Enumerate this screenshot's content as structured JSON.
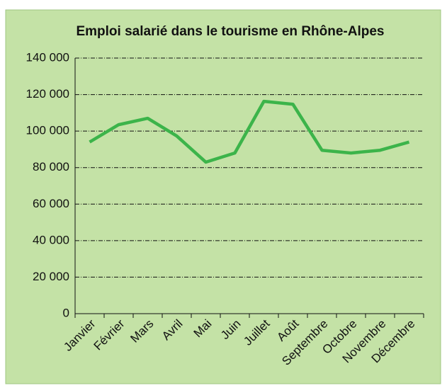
{
  "chart_data": {
    "type": "line",
    "title": "Emploi salarié dans le tourisme en Rhône-Alpes",
    "categories": [
      "Janvier",
      "Février",
      "Mars",
      "Avril",
      "Mai",
      "Juin",
      "Juillet",
      "Août",
      "Septembre",
      "Octobre",
      "Novembre",
      "Décembre"
    ],
    "series": [
      {
        "name": "Emploi salarié",
        "color": "#3cb44a",
        "values": [
          94000,
          103500,
          107000,
          97300,
          83000,
          88000,
          116300,
          114700,
          89500,
          88000,
          89500,
          94000
        ]
      }
    ],
    "ylim": [
      0,
      140000
    ],
    "yticks": [
      0,
      {
        "value": 20000,
        "label": "20 000"
      },
      {
        "value": 40000,
        "label": "40 000"
      },
      {
        "value": 60000,
        "label": "60 000"
      },
      {
        "value": 80000,
        "label": "80 000"
      },
      {
        "value": 100000,
        "label": "100 000"
      },
      {
        "value": 120000,
        "label": "120 000"
      },
      {
        "value": 140000,
        "label": "140 000"
      }
    ],
    "grid": true
  }
}
